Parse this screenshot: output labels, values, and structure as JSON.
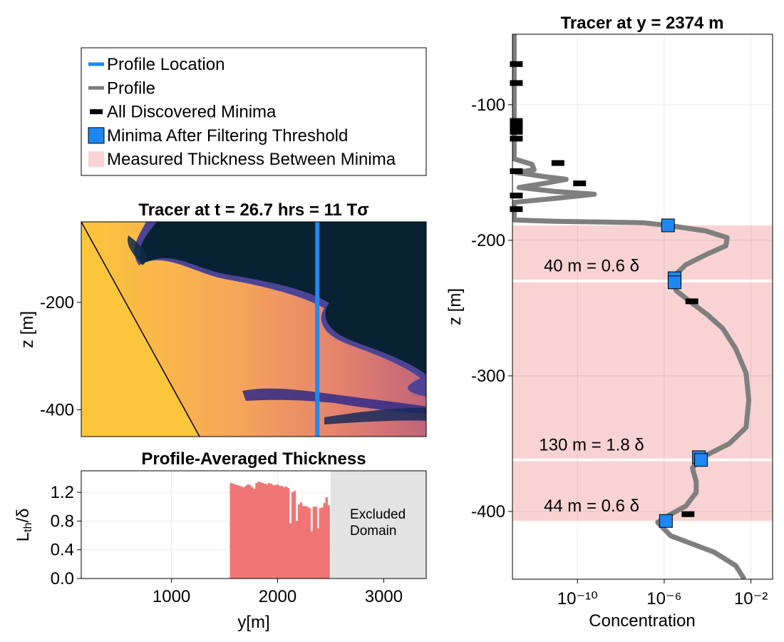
{
  "legend": {
    "items": [
      {
        "label": "Profile Location",
        "kind": "line",
        "color": "#1f88f0"
      },
      {
        "label": "Profile",
        "kind": "line",
        "color": "#7f7f7f"
      },
      {
        "label": "All Discovered Minima",
        "kind": "bar",
        "color": "#000000"
      },
      {
        "label": "Minima After Filtering Threshold",
        "kind": "square",
        "color": "#1f88f0"
      },
      {
        "label": "Measured Thickness Between Minima",
        "kind": "band",
        "color": "#f9d3d3"
      }
    ]
  },
  "colors": {
    "background_dark": "#082233",
    "profile_blue": "#1f88f0",
    "profile_gray": "#7f7f7f",
    "band_pink": "#f9d3d3",
    "bar_red": "#f07575",
    "excluded_gray": "#e3e3e3"
  },
  "chart_data": [
    {
      "id": "tracer_field",
      "type": "heatmap",
      "title": "Tracer at t = 26.7 hrs = 11 Tσ",
      "xlabel": "",
      "ylabel": "z [m]",
      "xlim": [
        150,
        3400
      ],
      "ylim": [
        -450,
        -50
      ],
      "y_ticks": [
        -200,
        -400
      ],
      "y_tick_labels": [
        "-200",
        "-400"
      ],
      "profile_location_y": 2374,
      "slope_line": [
        [
          150,
          -50
        ],
        [
          1270,
          -450
        ]
      ]
    },
    {
      "id": "profile_averaged_thickness",
      "type": "bar",
      "title": "Profile-Averaged Thickness",
      "xlabel": "y[m]",
      "ylabel": "Lth/δ",
      "xlim": [
        150,
        3400
      ],
      "ylim": [
        0,
        1.5
      ],
      "x_ticks": [
        1000,
        2000,
        3000
      ],
      "x_tick_labels": [
        "1000",
        "2000",
        "3000"
      ],
      "y_ticks": [
        0.0,
        0.4,
        0.8,
        1.2
      ],
      "y_tick_labels": [
        "0.0",
        "0.4",
        "0.8",
        "1.2"
      ],
      "excluded_region": [
        2500,
        3400
      ],
      "excluded_label": [
        "Excluded",
        "Domain"
      ],
      "x": [
        1560,
        1580,
        1600,
        1620,
        1640,
        1660,
        1680,
        1700,
        1720,
        1740,
        1760,
        1780,
        1800,
        1820,
        1840,
        1860,
        1880,
        1900,
        1920,
        1940,
        1960,
        1980,
        2000,
        2020,
        2040,
        2060,
        2080,
        2100,
        2120,
        2140,
        2160,
        2180,
        2200,
        2220,
        2240,
        2260,
        2280,
        2300,
        2320,
        2340,
        2360,
        2380,
        2400,
        2420,
        2440,
        2460,
        2480
      ],
      "values": [
        1.33,
        1.32,
        1.31,
        1.3,
        1.29,
        1.28,
        1.27,
        1.29,
        1.31,
        1.3,
        1.27,
        1.25,
        1.33,
        1.35,
        1.34,
        1.33,
        1.32,
        1.31,
        1.33,
        1.32,
        1.3,
        1.3,
        1.31,
        1.29,
        1.29,
        1.27,
        1.28,
        1.26,
        0.77,
        1.2,
        1.22,
        0.8,
        1.03,
        1.06,
        1.01,
        1.01,
        1.0,
        0.98,
        0.66,
        1.0,
        1.0,
        0.7,
        0.98,
        0.99,
        1.05,
        1.13,
        1.02
      ]
    },
    {
      "id": "vertical_profile",
      "type": "line",
      "title": "Tracer at y = 2374 m",
      "xlabel": "Concentration",
      "ylabel": "z [m]",
      "x_scale": "log10",
      "xlim": [
        1e-13,
        0.1
      ],
      "ylim": [
        -450,
        -48
      ],
      "x_ticks": [
        1e-10,
        1e-06,
        0.01
      ],
      "x_tick_labels": [
        "10⁻¹⁰",
        "10⁻⁶",
        "10⁻²"
      ],
      "y_ticks": [
        -100,
        -200,
        -300,
        -400
      ],
      "y_tick_labels": [
        "-100",
        "-200",
        "-300",
        "-400"
      ],
      "profile": [
        {
          "z": -48,
          "c": 1.2e-13
        },
        {
          "z": -140,
          "c": 1.2e-13
        },
        {
          "z": -144,
          "c": 8e-13
        },
        {
          "z": -148,
          "c": 1e-12
        },
        {
          "z": -150,
          "c": 1.5e-13
        },
        {
          "z": -153,
          "c": 3e-12
        },
        {
          "z": -155,
          "c": 3e-11
        },
        {
          "z": -158,
          "c": 3e-12
        },
        {
          "z": -161,
          "c": 2e-13
        },
        {
          "z": -164,
          "c": 1e-11
        },
        {
          "z": -166,
          "c": 6e-10
        },
        {
          "z": -169,
          "c": 1e-11
        },
        {
          "z": -172,
          "c": 1.2e-13
        },
        {
          "z": -185,
          "c": 1.2e-13
        },
        {
          "z": -186,
          "c": 1e-11
        },
        {
          "z": -187,
          "c": 1e-07
        },
        {
          "z": -189,
          "c": 1.5e-06
        },
        {
          "z": -193,
          "c": 8e-05
        },
        {
          "z": -198,
          "c": 0.0008
        },
        {
          "z": -204,
          "c": 0.0007
        },
        {
          "z": -210,
          "c": 0.0001
        },
        {
          "z": -218,
          "c": 1e-05
        },
        {
          "z": -226,
          "c": 3e-06
        },
        {
          "z": -230,
          "c": 2.5e-06
        },
        {
          "z": -237,
          "c": 3.5e-06
        },
        {
          "z": -245,
          "c": 1.5e-05
        },
        {
          "z": -255,
          "c": 0.0001
        },
        {
          "z": -265,
          "c": 0.0005
        },
        {
          "z": -280,
          "c": 0.002
        },
        {
          "z": -298,
          "c": 0.006
        },
        {
          "z": -318,
          "c": 0.008
        },
        {
          "z": -338,
          "c": 0.006
        },
        {
          "z": -350,
          "c": 0.001
        },
        {
          "z": -358,
          "c": 0.0001
        },
        {
          "z": -362,
          "c": 4e-05
        },
        {
          "z": -368,
          "c": 2e-05
        },
        {
          "z": -378,
          "c": 3e-05
        },
        {
          "z": -386,
          "c": 3e-05
        },
        {
          "z": -396,
          "c": 1e-05
        },
        {
          "z": -402,
          "c": 2e-06
        },
        {
          "z": -408,
          "c": 5e-07
        },
        {
          "z": -418,
          "c": 2e-06
        },
        {
          "z": -430,
          "c": 0.0002
        },
        {
          "z": -440,
          "c": 0.002
        },
        {
          "z": -450,
          "c": 0.005
        }
      ],
      "all_minima": [
        {
          "z": -70,
          "c": 1.2e-13
        },
        {
          "z": -84,
          "c": 1.2e-13
        },
        {
          "z": -112,
          "c": 1.2e-13
        },
        {
          "z": -116,
          "c": 1.2e-13
        },
        {
          "z": -120,
          "c": 1.2e-13
        },
        {
          "z": -125,
          "c": 1.2e-13
        },
        {
          "z": -143,
          "c": 1e-11
        },
        {
          "z": -149,
          "c": 1.2e-13
        },
        {
          "z": -158,
          "c": 1e-10
        },
        {
          "z": -167,
          "c": 1.2e-13
        },
        {
          "z": -177,
          "c": 1.2e-13
        },
        {
          "z": -229,
          "c": 2.5e-06
        },
        {
          "z": -245,
          "c": 1.5e-05
        },
        {
          "z": -362,
          "c": 4e-05
        },
        {
          "z": -402,
          "c": 1e-05
        }
      ],
      "filtered_minima": [
        {
          "z": -189,
          "c": 1.5e-06
        },
        {
          "z": -228,
          "c": 3e-06
        },
        {
          "z": -231,
          "c": 3e-06
        },
        {
          "z": -360,
          "c": 4e-05
        },
        {
          "z": -362,
          "c": 5e-05
        },
        {
          "z": -407,
          "c": 1.2e-06
        }
      ],
      "bands": [
        {
          "z_top": -189,
          "z_bottom": -229,
          "label": "40 m = 0.6 δ",
          "label_z": -223
        },
        {
          "z_top": -231,
          "z_bottom": -361,
          "label": "130 m = 1.8 δ",
          "label_z": -355
        },
        {
          "z_top": -363,
          "z_bottom": -407,
          "label": "44 m = 0.6 δ",
          "label_z": -400
        }
      ]
    }
  ]
}
